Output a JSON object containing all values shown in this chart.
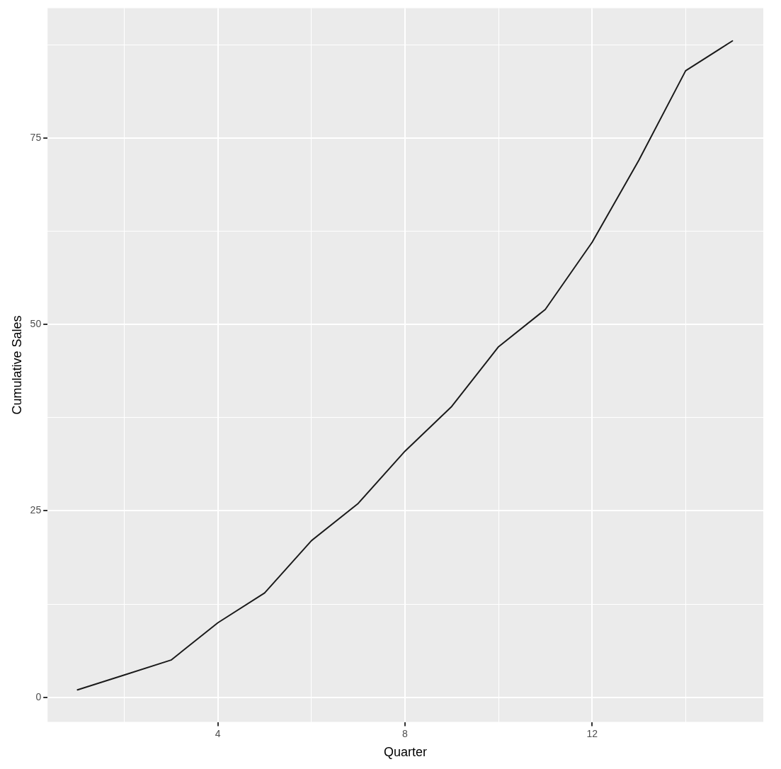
{
  "chart_data": {
    "type": "line",
    "xlabel": "Quarter",
    "ylabel": "Cumulative Sales",
    "x": [
      1,
      2,
      3,
      4,
      5,
      6,
      7,
      8,
      9,
      10,
      11,
      12,
      13,
      14,
      15
    ],
    "series": [
      {
        "color": "#1a1a1a",
        "values": [
          1,
          3,
          5,
          10,
          14,
          21,
          26,
          33,
          39,
          47,
          52,
          61,
          72,
          84,
          88
        ]
      }
    ],
    "xlim": [
      0.36,
      15.66
    ],
    "ylim": [
      -3.3,
      92.4
    ],
    "xticks": [
      {
        "value": 2,
        "label": null
      },
      4,
      {
        "value": 6,
        "label": null
      },
      8,
      {
        "value": 10,
        "label": null
      },
      12,
      {
        "value": 14,
        "label": null
      }
    ],
    "yticks": [
      0,
      {
        "value": 12.5,
        "label": null
      },
      25,
      {
        "value": 37.5,
        "label": null
      },
      50,
      {
        "value": 62.5,
        "label": null
      },
      75,
      {
        "value": 87.5,
        "label": null
      }
    ],
    "grid": true,
    "marker": "none",
    "line_style": "solid"
  }
}
